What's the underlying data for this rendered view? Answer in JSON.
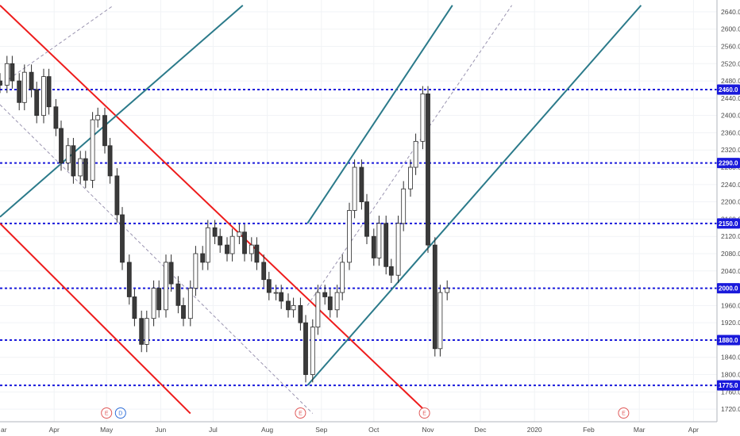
{
  "chart_data": {
    "type": "candlestick",
    "y_axis": {
      "ylim": [
        1700,
        2660
      ],
      "tick_labels": [
        "2640.0",
        "2600.0",
        "2560.0",
        "2520.0",
        "2480.0",
        "2440.0",
        "2400.0",
        "2360.0",
        "2320.0",
        "2280.0",
        "2240.0",
        "2200.0",
        "2160.0",
        "2120.0",
        "2080.0",
        "2040.0",
        "2000.0",
        "1960.0",
        "1920.0",
        "1880.0",
        "1840.0",
        "1800.0",
        "1760.0",
        "1720.0"
      ],
      "tick_values": [
        2640,
        2600,
        2560,
        2520,
        2480,
        2440,
        2400,
        2360,
        2320,
        2280,
        2240,
        2200,
        2160,
        2120,
        2080,
        2040,
        2000,
        1960,
        1920,
        1880,
        1840,
        1800,
        1760,
        1720
      ]
    },
    "x_axis": {
      "tick_labels": [
        "ar",
        "Apr",
        "May",
        "Jun",
        "Jul",
        "Aug",
        "Sep",
        "Oct",
        "Nov",
        "Dec",
        "2020",
        "Feb",
        "Mar",
        "Apr"
      ],
      "tick_dates": [
        "2019-03-01",
        "2019-04-01",
        "2019-05-01",
        "2019-06-01",
        "2019-07-01",
        "2019-08-01",
        "2019-09-01",
        "2019-10-01",
        "2019-11-01",
        "2019-12-01",
        "2020-01-01",
        "2020-02-01",
        "2020-03-01",
        "2020-04-01"
      ],
      "range": [
        "2019-03-01",
        "2020-04-08"
      ]
    },
    "horizontal_levels": [
      {
        "value": 2460,
        "label": "2460.0"
      },
      {
        "value": 2290,
        "label": "2290.0"
      },
      {
        "value": 2150,
        "label": "2150.0"
      },
      {
        "value": 2000,
        "label": "2000.0"
      },
      {
        "value": 1880,
        "label": "1880.0"
      },
      {
        "value": 1775,
        "label": "1775.0"
      }
    ],
    "trend_lines": [
      {
        "color": "red",
        "style": "solid",
        "from": {
          "date": "2019-03-01",
          "value": 2655
        },
        "to": {
          "date": "2019-11-01",
          "value": 1710
        }
      },
      {
        "color": "red",
        "style": "solid",
        "from": {
          "date": "2019-03-01",
          "value": 2150
        },
        "to": {
          "date": "2019-06-18",
          "value": 1710
        }
      },
      {
        "color": "teal",
        "style": "solid",
        "from": {
          "date": "2019-03-01",
          "value": 2165
        },
        "to": {
          "date": "2019-07-18",
          "value": 2655
        }
      },
      {
        "color": "teal",
        "style": "solid",
        "from": {
          "date": "2019-08-24",
          "value": 2150
        },
        "to": {
          "date": "2019-11-15",
          "value": 2655
        }
      },
      {
        "color": "teal",
        "style": "solid",
        "from": {
          "date": "2019-08-24",
          "value": 1775
        },
        "to": {
          "date": "2020-03-02",
          "value": 2655
        }
      },
      {
        "color": "gray",
        "style": "dashed",
        "from": {
          "date": "2019-03-01",
          "value": 2425
        },
        "to": {
          "date": "2019-08-27",
          "value": 1710
        }
      },
      {
        "color": "gray",
        "style": "dashed",
        "from": {
          "date": "2019-03-01",
          "value": 2470
        },
        "to": {
          "date": "2019-05-05",
          "value": 2655
        }
      },
      {
        "color": "gray",
        "style": "dashed",
        "from": {
          "date": "2019-08-24",
          "value": 1960
        },
        "to": {
          "date": "2019-12-19",
          "value": 2655
        }
      }
    ],
    "events": [
      {
        "date": "2019-05-01",
        "label": "E",
        "color": "#e05a5a"
      },
      {
        "date": "2019-05-09",
        "label": "D",
        "color": "#2f6ed8"
      },
      {
        "date": "2019-08-20",
        "label": "E",
        "color": "#e05a5a"
      },
      {
        "date": "2019-10-30",
        "label": "E",
        "color": "#e05a5a"
      },
      {
        "date": "2020-02-21",
        "label": "E",
        "color": "#e05a5a"
      }
    ],
    "candles_close": [
      {
        "date": "2019-03-01",
        "value": 2470
      },
      {
        "date": "2019-03-05",
        "value": 2520
      },
      {
        "date": "2019-03-08",
        "value": 2480
      },
      {
        "date": "2019-03-12",
        "value": 2430
      },
      {
        "date": "2019-03-15",
        "value": 2500
      },
      {
        "date": "2019-03-19",
        "value": 2460
      },
      {
        "date": "2019-03-22",
        "value": 2400
      },
      {
        "date": "2019-03-26",
        "value": 2490
      },
      {
        "date": "2019-03-29",
        "value": 2420
      },
      {
        "date": "2019-04-02",
        "value": 2370
      },
      {
        "date": "2019-04-05",
        "value": 2290
      },
      {
        "date": "2019-04-09",
        "value": 2330
      },
      {
        "date": "2019-04-12",
        "value": 2260
      },
      {
        "date": "2019-04-16",
        "value": 2300
      },
      {
        "date": "2019-04-19",
        "value": 2250
      },
      {
        "date": "2019-04-23",
        "value": 2390
      },
      {
        "date": "2019-04-26",
        "value": 2400
      },
      {
        "date": "2019-04-30",
        "value": 2330
      },
      {
        "date": "2019-05-03",
        "value": 2260
      },
      {
        "date": "2019-05-07",
        "value": 2170
      },
      {
        "date": "2019-05-10",
        "value": 2060
      },
      {
        "date": "2019-05-14",
        "value": 1980
      },
      {
        "date": "2019-05-17",
        "value": 1930
      },
      {
        "date": "2019-05-21",
        "value": 1870
      },
      {
        "date": "2019-05-24",
        "value": 1930
      },
      {
        "date": "2019-05-28",
        "value": 2000
      },
      {
        "date": "2019-05-31",
        "value": 1950
      },
      {
        "date": "2019-06-04",
        "value": 2060
      },
      {
        "date": "2019-06-07",
        "value": 2010
      },
      {
        "date": "2019-06-11",
        "value": 1960
      },
      {
        "date": "2019-06-14",
        "value": 1930
      },
      {
        "date": "2019-06-18",
        "value": 2000
      },
      {
        "date": "2019-06-21",
        "value": 2080
      },
      {
        "date": "2019-06-25",
        "value": 2060
      },
      {
        "date": "2019-06-28",
        "value": 2140
      },
      {
        "date": "2019-07-02",
        "value": 2120
      },
      {
        "date": "2019-07-05",
        "value": 2100
      },
      {
        "date": "2019-07-09",
        "value": 2080
      },
      {
        "date": "2019-07-12",
        "value": 2120
      },
      {
        "date": "2019-07-16",
        "value": 2130
      },
      {
        "date": "2019-07-19",
        "value": 2080
      },
      {
        "date": "2019-07-23",
        "value": 2100
      },
      {
        "date": "2019-07-26",
        "value": 2060
      },
      {
        "date": "2019-07-30",
        "value": 2020
      },
      {
        "date": "2019-08-02",
        "value": 1990
      },
      {
        "date": "2019-08-06",
        "value": 1990
      },
      {
        "date": "2019-08-09",
        "value": 1970
      },
      {
        "date": "2019-08-13",
        "value": 1950
      },
      {
        "date": "2019-08-16",
        "value": 1960
      },
      {
        "date": "2019-08-20",
        "value": 1920
      },
      {
        "date": "2019-08-23",
        "value": 1800
      },
      {
        "date": "2019-08-27",
        "value": 1910
      },
      {
        "date": "2019-08-30",
        "value": 1990
      },
      {
        "date": "2019-09-03",
        "value": 1980
      },
      {
        "date": "2019-09-06",
        "value": 1950
      },
      {
        "date": "2019-09-10",
        "value": 1990
      },
      {
        "date": "2019-09-13",
        "value": 2060
      },
      {
        "date": "2019-09-17",
        "value": 2180
      },
      {
        "date": "2019-09-20",
        "value": 2280
      },
      {
        "date": "2019-09-24",
        "value": 2200
      },
      {
        "date": "2019-09-27",
        "value": 2120
      },
      {
        "date": "2019-10-01",
        "value": 2070
      },
      {
        "date": "2019-10-04",
        "value": 2150
      },
      {
        "date": "2019-10-08",
        "value": 2050
      },
      {
        "date": "2019-10-11",
        "value": 2030
      },
      {
        "date": "2019-10-15",
        "value": 2150
      },
      {
        "date": "2019-10-18",
        "value": 2230
      },
      {
        "date": "2019-10-22",
        "value": 2280
      },
      {
        "date": "2019-10-25",
        "value": 2340
      },
      {
        "date": "2019-10-29",
        "value": 2450
      },
      {
        "date": "2019-11-01",
        "value": 2100
      },
      {
        "date": "2019-11-05",
        "value": 1860
      },
      {
        "date": "2019-11-08",
        "value": 1990
      },
      {
        "date": "2019-11-12",
        "value": 2000
      }
    ]
  }
}
